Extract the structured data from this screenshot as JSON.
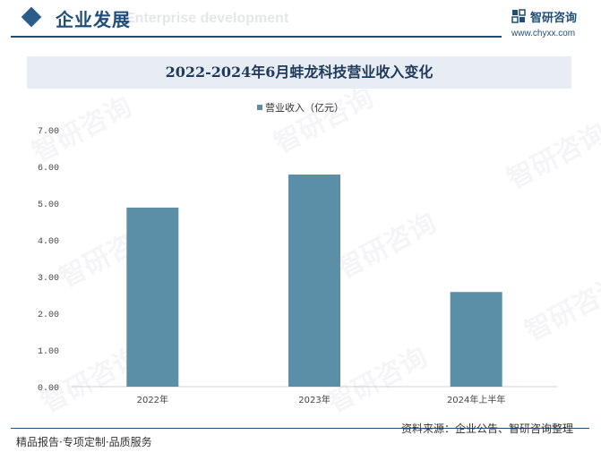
{
  "header": {
    "section_title": "企业发展",
    "section_subtitle": "Enterprise development",
    "logo_text": "智研咨询",
    "logo_url": "www.chyxx.com"
  },
  "watermark_text": "智研咨询",
  "chart_data": {
    "type": "bar",
    "title": "2022-2024年6月蚌龙科技营业收入变化",
    "categories": [
      "2022年",
      "2023年",
      "2024年上半年"
    ],
    "series": [
      {
        "name": "营业收入（亿元）",
        "values": [
          4.88,
          5.78,
          2.58
        ],
        "color": "#5b8fa8"
      }
    ],
    "ylim": [
      0,
      7
    ],
    "yticks": [
      "0.00",
      "1.00",
      "2.00",
      "3.00",
      "4.00",
      "5.00",
      "6.00",
      "7.00"
    ],
    "legend_position": "top-center",
    "grid": false
  },
  "footer": {
    "left": "精品报告·专项定制·品质服务",
    "right": "资料来源：企业公告、智研咨询整理"
  }
}
